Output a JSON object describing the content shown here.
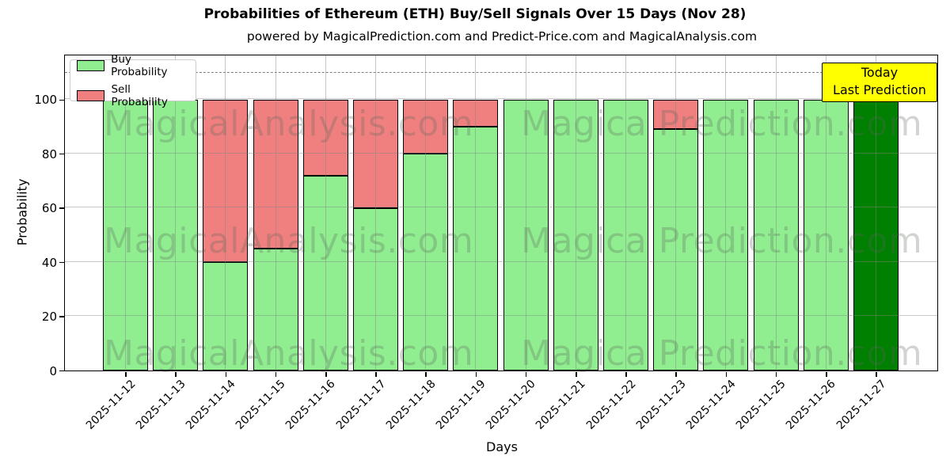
{
  "header": {
    "title": "Probabilities of Ethereum (ETH) Buy/Sell Signals Over 15 Days (Nov 28)",
    "subtitle": "powered by MagicalPrediction.com and Predict-Price.com and MagicalAnalysis.com"
  },
  "legend": {
    "items": [
      {
        "label": "Buy Probability",
        "color": "#90EE90"
      },
      {
        "label": "Sell Probability",
        "color": "#F08080"
      }
    ]
  },
  "annotation": {
    "line1": "Today",
    "line2": "Last Prediction"
  },
  "watermarks": {
    "left": "MagicalAnalysis.com",
    "right": "Magica Prediction.com"
  },
  "axes": {
    "x_label": "Days",
    "y_label": "Probability",
    "y_ticks": [
      0,
      20,
      40,
      60,
      80,
      100
    ]
  },
  "colors": {
    "buy": "#90EE90",
    "sell": "#F08080",
    "today_buy": "#008000",
    "bar_edge": "#000000",
    "grid": "#b0b0b0",
    "dashed": "#7f7f7f",
    "annotation_bg": "#FFFF00"
  },
  "chart_data": {
    "type": "bar",
    "stacked": true,
    "title": "Probabilities of Ethereum (ETH) Buy/Sell Signals Over 15 Days (Nov 28)",
    "xlabel": "Days",
    "ylabel": "Probability",
    "ylim": [
      0,
      116
    ],
    "yticks": [
      0,
      20,
      40,
      60,
      80,
      100
    ],
    "dashed_line_y": 110,
    "grid": true,
    "legend_position": "upper left",
    "categories": [
      "2025-11-12",
      "2025-11-13",
      "2025-11-14",
      "2025-11-15",
      "2025-11-16",
      "2025-11-17",
      "2025-11-18",
      "2025-11-19",
      "2025-11-20",
      "2025-11-21",
      "2025-11-22",
      "2025-11-23",
      "2025-11-24",
      "2025-11-25",
      "2025-11-26",
      "2025-11-27"
    ],
    "series": [
      {
        "name": "Buy Probability",
        "color": "#90EE90",
        "values": [
          100,
          100,
          40,
          45,
          72,
          60,
          80,
          90,
          100,
          100,
          100,
          89,
          100,
          100,
          100,
          100
        ]
      },
      {
        "name": "Sell Probability",
        "color": "#F08080",
        "values": [
          0,
          0,
          60,
          55,
          28,
          40,
          20,
          10,
          0,
          0,
          0,
          11,
          0,
          0,
          0,
          0
        ]
      }
    ],
    "today_index": 15,
    "today_color": "#008000"
  }
}
